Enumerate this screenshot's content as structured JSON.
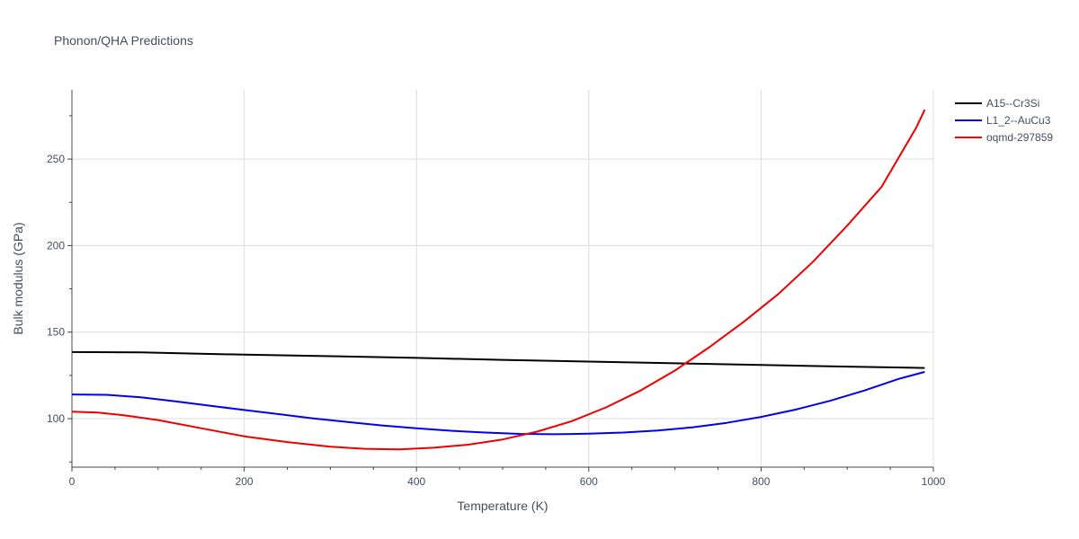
{
  "chart_data": {
    "type": "line",
    "title": "Phonon/QHA Predictions",
    "xlabel": "Temperature (K)",
    "ylabel": "Bulk modulus (GPa)",
    "xlim": [
      0,
      1000
    ],
    "ylim": [
      72,
      290
    ],
    "x_ticks": [
      0,
      200,
      400,
      600,
      800,
      1000
    ],
    "y_ticks": [
      100,
      150,
      200,
      250
    ],
    "grid": true,
    "legend_position": "top-right",
    "series": [
      {
        "name": "A15--Cr3Si",
        "color": "#000000",
        "x": [
          0,
          80,
          200,
          300,
          400,
          500,
          600,
          700,
          800,
          900,
          990
        ],
        "y": [
          138.5,
          138.3,
          137.0,
          136.1,
          135.1,
          134.0,
          133.0,
          132.0,
          131.0,
          130.1,
          129.3
        ]
      },
      {
        "name": "L1_2--AuCu3",
        "color": "#0000ee",
        "x": [
          0,
          40,
          80,
          120,
          160,
          200,
          240,
          280,
          320,
          360,
          400,
          440,
          480,
          520,
          560,
          600,
          640,
          680,
          720,
          760,
          800,
          840,
          880,
          920,
          960,
          990
        ],
        "y": [
          114.0,
          113.8,
          112.4,
          110.0,
          107.5,
          105.0,
          102.6,
          100.2,
          98.1,
          96.1,
          94.5,
          93.0,
          92.0,
          91.2,
          91.0,
          91.3,
          92.0,
          93.2,
          95.0,
          97.6,
          101.0,
          105.2,
          110.3,
          116.3,
          123.0,
          127.0
        ]
      },
      {
        "name": "oqmd-297859",
        "color": "#ee0000",
        "x": [
          0,
          30,
          60,
          100,
          150,
          200,
          250,
          300,
          340,
          380,
          420,
          460,
          500,
          540,
          580,
          620,
          660,
          700,
          740,
          780,
          820,
          860,
          900,
          940,
          980,
          990
        ],
        "y": [
          104.0,
          103.5,
          102.0,
          99.2,
          94.5,
          89.8,
          86.5,
          83.8,
          82.6,
          82.3,
          83.2,
          85.0,
          88.0,
          92.5,
          98.5,
          106.5,
          116.2,
          127.8,
          141.3,
          156.0,
          172.0,
          190.5,
          211.5,
          234.0,
          268.0,
          278.5
        ]
      }
    ]
  }
}
